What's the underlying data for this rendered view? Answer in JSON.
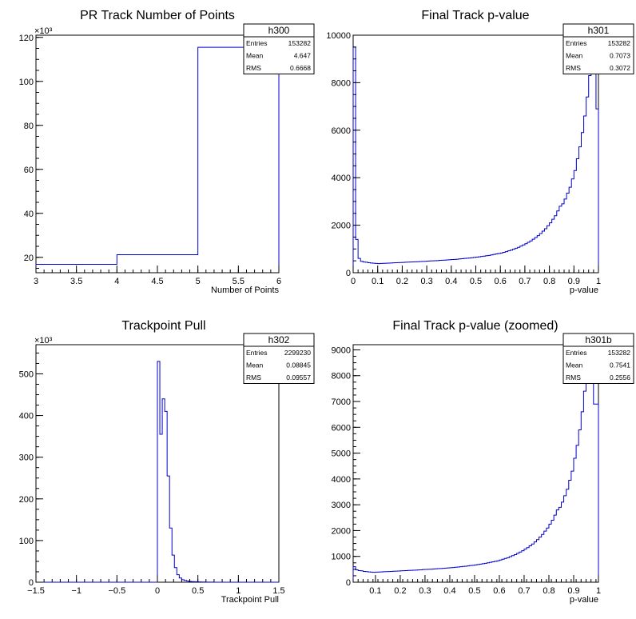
{
  "chart_data": [
    {
      "type": "histogram",
      "title": "PR Track Number of Points",
      "xlabel": "Number of Points",
      "ylabel": "",
      "xlim": [
        3,
        6
      ],
      "ylim": [
        13000,
        121000
      ],
      "y_multiplier_label": "×10³",
      "x_ticks": [
        "3",
        "3.5",
        "4",
        "4.5",
        "5",
        "5.5",
        "6"
      ],
      "y_ticks": [
        "20",
        "40",
        "60",
        "80",
        "100",
        "120"
      ],
      "stats": {
        "name": "h300",
        "entries_label": "Entries",
        "entries": "153282",
        "mean_label": "Mean",
        "mean": "4.647",
        "rms_label": "RMS",
        "rms": "0.6668"
      },
      "bins": {
        "edges": [
          3,
          4,
          5,
          6
        ],
        "counts": [
          16800,
          21200,
          115500
        ]
      },
      "line_color": "#0000cc"
    },
    {
      "type": "histogram",
      "title": "Final Track p-value",
      "xlabel": "p-value",
      "ylabel": "",
      "xlim": [
        0,
        1
      ],
      "ylim": [
        0,
        10000
      ],
      "x_ticks": [
        "0",
        "0.1",
        "0.2",
        "0.3",
        "0.4",
        "0.5",
        "0.6",
        "0.7",
        "0.8",
        "0.9",
        "1"
      ],
      "y_ticks": [
        "0",
        "2000",
        "4000",
        "6000",
        "8000",
        "10000"
      ],
      "stats": {
        "name": "h301",
        "entries_label": "Entries",
        "entries": "153282",
        "mean_label": "Mean",
        "mean": "0.7073",
        "rms_label": "RMS",
        "rms": "0.3072"
      },
      "bins": {
        "nbins": 100,
        "xmin": 0,
        "xmax": 1,
        "counts": [
          9500,
          1400,
          600,
          480,
          450,
          440,
          420,
          410,
          400,
          390,
          385,
          390,
          395,
          400,
          405,
          410,
          415,
          420,
          425,
          430,
          435,
          440,
          445,
          450,
          455,
          460,
          465,
          470,
          475,
          480,
          490,
          495,
          500,
          505,
          510,
          520,
          525,
          530,
          540,
          545,
          555,
          560,
          570,
          580,
          590,
          600,
          610,
          620,
          630,
          645,
          655,
          670,
          685,
          700,
          715,
          730,
          750,
          770,
          790,
          810,
          830,
          860,
          890,
          920,
          950,
          990,
          1030,
          1070,
          1120,
          1170,
          1220,
          1280,
          1340,
          1410,
          1480,
          1560,
          1650,
          1750,
          1850,
          1980,
          2100,
          2250,
          2400,
          2600,
          2800,
          2900,
          3100,
          3350,
          3600,
          3950,
          4300,
          4800,
          5300,
          5900,
          6600,
          7400,
          8300,
          8700,
          9600,
          6900
        ]
      },
      "line_color": "#0000cc"
    },
    {
      "type": "histogram",
      "title": "Trackpoint Pull",
      "xlabel": "Trackpoint Pull",
      "ylabel": "",
      "xlim": [
        -1.5,
        1.5
      ],
      "ylim": [
        0,
        570000
      ],
      "y_multiplier_label": "×10³",
      "x_ticks": [
        "−1.5",
        "−1",
        "−0.5",
        "0",
        "0.5",
        "1",
        "1.5"
      ],
      "y_ticks": [
        "0",
        "100",
        "200",
        "300",
        "400",
        "500"
      ],
      "stats": {
        "name": "h302",
        "entries_label": "Entries",
        "entries": "2299230",
        "mean_label": "Mean",
        "mean": "0.08845",
        "rms_label": "RMS",
        "rms": "0.09557"
      },
      "bins": {
        "nbins": 100,
        "xmin": -1.5,
        "xmax": 1.5,
        "counts": [
          0,
          0,
          0,
          0,
          0,
          0,
          0,
          0,
          0,
          0,
          0,
          0,
          0,
          0,
          0,
          0,
          0,
          0,
          0,
          0,
          0,
          0,
          0,
          0,
          0,
          0,
          0,
          0,
          0,
          0,
          0,
          0,
          0,
          0,
          0,
          0,
          0,
          0,
          0,
          0,
          0,
          0,
          0,
          0,
          0,
          0,
          0,
          0,
          0,
          0,
          530000,
          355000,
          440000,
          410000,
          255000,
          130000,
          65000,
          35000,
          18000,
          10000,
          6000,
          4000,
          3000,
          2000,
          1500,
          1200,
          1000,
          800,
          600,
          400,
          300,
          200,
          150,
          100,
          0,
          0,
          0,
          0,
          0,
          0,
          0,
          0,
          0,
          0,
          0,
          0,
          0,
          0,
          0,
          0,
          0,
          0,
          0,
          0,
          0,
          0,
          0,
          0,
          0,
          0
        ]
      },
      "line_color": "#0000cc"
    },
    {
      "type": "histogram",
      "title": "Final Track p-value (zoomed)",
      "xlabel": "p-value",
      "ylabel": "",
      "xlim": [
        0.01,
        1
      ],
      "ylim": [
        0,
        9200
      ],
      "x_ticks": [
        "0.1",
        "0.2",
        "0.3",
        "0.4",
        "0.5",
        "0.6",
        "0.7",
        "0.8",
        "0.9",
        "1"
      ],
      "y_ticks": [
        "0",
        "1000",
        "2000",
        "3000",
        "4000",
        "5000",
        "6000",
        "7000",
        "8000",
        "9000"
      ],
      "stats": {
        "name": "h301b",
        "entries_label": "Entries",
        "entries": "153282",
        "mean_label": "Mean",
        "mean": "0.7541",
        "rms_label": "RMS",
        "rms": "0.2556"
      },
      "bins": {
        "nbins": 99,
        "xmin": 0.01,
        "xmax": 1,
        "counts": [
          600,
          480,
          450,
          440,
          420,
          410,
          400,
          390,
          385,
          390,
          395,
          400,
          405,
          410,
          415,
          420,
          425,
          430,
          435,
          440,
          445,
          450,
          455,
          460,
          465,
          470,
          475,
          480,
          490,
          495,
          500,
          505,
          510,
          520,
          525,
          530,
          540,
          545,
          555,
          560,
          570,
          580,
          590,
          600,
          610,
          620,
          630,
          645,
          655,
          670,
          685,
          700,
          715,
          730,
          750,
          770,
          790,
          810,
          830,
          860,
          890,
          920,
          950,
          990,
          1030,
          1070,
          1120,
          1170,
          1220,
          1280,
          1340,
          1410,
          1480,
          1560,
          1650,
          1750,
          1850,
          1980,
          2100,
          2250,
          2400,
          2600,
          2800,
          2900,
          3100,
          3350,
          3600,
          3950,
          4300,
          4800,
          5300,
          5900,
          6600,
          7400,
          8300,
          8700,
          9600,
          6900,
          6900
        ]
      },
      "line_color": "#0000cc"
    }
  ]
}
